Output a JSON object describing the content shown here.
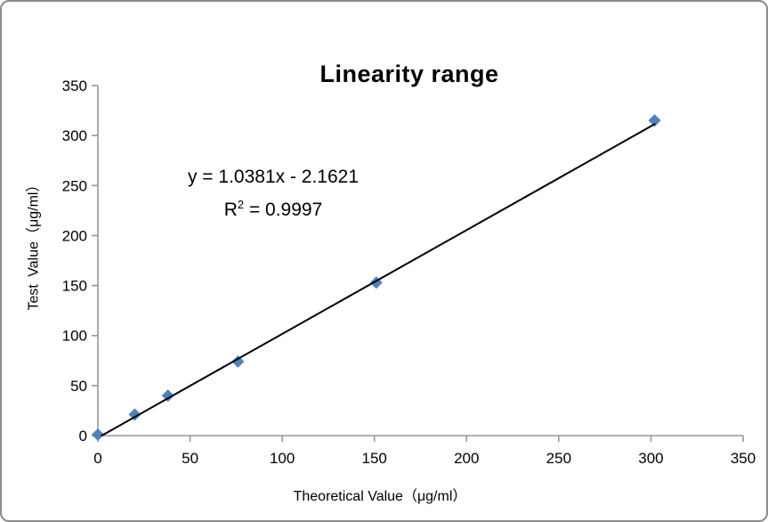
{
  "chart_data": {
    "type": "scatter",
    "title": "Linearity range",
    "xlabel": "Theoretical Value（μg/ml）",
    "ylabel": "Test Value（μg/ml）",
    "annotation": {
      "equation": "y = 1.0381x - 2.1621",
      "r2_base": "R",
      "r2_sup": "2",
      "r2_rest": " = 0.9997"
    },
    "x": [
      0,
      20,
      38,
      76,
      151,
      302
    ],
    "y": [
      1,
      21,
      40,
      74,
      153,
      315
    ],
    "trendline": {
      "slope": 1.0381,
      "intercept": -2.1621,
      "x_min": 0,
      "x_max": 302
    },
    "xlim": [
      0,
      350
    ],
    "ylim": [
      0,
      350
    ],
    "xtick_step": 50,
    "ytick_step": 50,
    "grid": false,
    "legend": "none",
    "colors": {
      "marker": "#4F81BD",
      "trendline": "#000000",
      "axis": "#969696",
      "text": "#000000",
      "frame_border": "#8C8C8C"
    }
  }
}
